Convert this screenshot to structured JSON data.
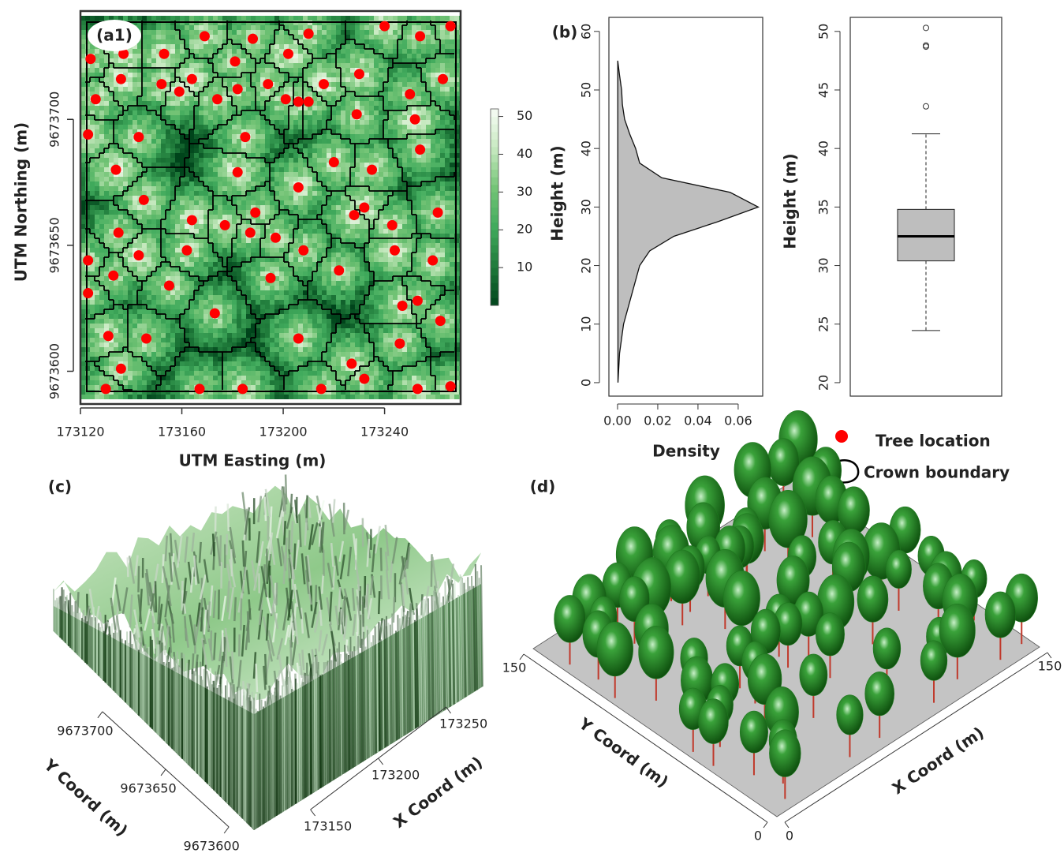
{
  "chart_data": [
    {
      "type": "map",
      "panel": "(a1)",
      "x_label": "UTM Easting (m)",
      "y_label": "UTM Northing (m)",
      "xlim": [
        173120,
        173270
      ],
      "ylim": [
        9673587,
        9673743
      ],
      "xticks": [
        173120,
        173160,
        173200,
        173240
      ],
      "yticks": [
        9673600,
        9673650,
        9673700
      ],
      "series": [
        {
          "name": "Tree location",
          "color": "#ff0000",
          "x": [
            173169,
            173188,
            173210,
            173240,
            173254,
            173266,
            173124,
            173137,
            173153,
            173181,
            173202,
            173230,
            173263,
            173136,
            173152,
            173164,
            173194,
            173216,
            173126,
            173159,
            173174,
            173182,
            173201,
            173206,
            173210,
            173250,
            173229,
            173252,
            173123,
            173143,
            173185,
            173254,
            173220,
            173134,
            173182,
            173235,
            173206,
            173145,
            173164,
            173177,
            173189,
            173232,
            173228,
            173261,
            173243,
            173135,
            173187,
            173197,
            173123,
            173143,
            173162,
            173208,
            173244,
            173259,
            173133,
            173155,
            173195,
            173222,
            173123,
            173247,
            173253,
            173173,
            173262,
            173131,
            173146,
            173206,
            173246,
            173136,
            173227,
            173232,
            173130,
            173167,
            173184,
            173215,
            173253,
            173266
          ],
          "y": [
            9673733,
            9673732,
            9673734,
            9673737,
            9673733,
            9673737,
            9673724,
            9673726,
            9673726,
            9673723,
            9673726,
            9673718,
            9673716,
            9673716,
            9673714,
            9673716,
            9673714,
            9673714,
            9673708,
            9673711,
            9673708,
            9673712,
            9673708,
            9673707,
            9673707,
            9673710,
            9673702,
            9673700,
            9673694,
            9673693,
            9673693,
            9673688,
            9673683,
            9673680,
            9673679,
            9673680,
            9673673,
            9673668,
            9673660,
            9673658,
            9673663,
            9673665,
            9673662,
            9673663,
            9673658,
            9673655,
            9673655,
            9673653,
            9673644,
            9673646,
            9673648,
            9673648,
            9673648,
            9673644,
            9673638,
            9673634,
            9673637,
            9673640,
            9673631,
            9673626,
            9673628,
            9673623,
            9673620,
            9673614,
            9673613,
            9673613,
            9673611,
            9673601,
            9673603,
            9673597,
            9673593,
            9673593,
            9673593,
            9673593,
            9673593,
            9673594
          ]
        }
      ],
      "boundary": {
        "name": "Crown boundary",
        "color": "#000000"
      },
      "colorbar": {
        "lim": [
          0,
          52
        ],
        "ticks": [
          10,
          20,
          30,
          40,
          50
        ],
        "colors": [
          "#00441b",
          "#1f7a3a",
          "#41ab5d",
          "#74c476",
          "#c7e9c0",
          "#f7fcf5"
        ]
      }
    },
    {
      "type": "density",
      "panel": "(b)",
      "x_label": "Density",
      "y_label": "Height (m)",
      "xlim": [
        -0.0043,
        0.0722
      ],
      "ylim": [
        -2.3,
        62.4
      ],
      "xticks": [
        {
          "value": 0,
          "label": "0.00"
        },
        {
          "value": 0.02,
          "label": "0.02"
        },
        {
          "value": 0.04,
          "label": "0.04"
        },
        {
          "value": 0.06,
          "label": "0.06"
        }
      ],
      "yticks": [
        0,
        10,
        20,
        30,
        40,
        50,
        60
      ],
      "series": [
        {
          "color": "#bebebe",
          "x": [
            0.0002,
            0.001,
            0.003,
            0.007,
            0.011,
            0.016,
            0.028,
            0.05,
            0.07,
            0.056,
            0.022,
            0.011,
            0.009,
            0.006,
            0.0035,
            0.0024,
            0.002,
            0.001,
            0.0001
          ],
          "y": [
            0,
            5,
            10,
            15,
            20,
            22.5,
            25,
            27.5,
            30,
            32.5,
            35,
            37.5,
            40,
            42.5,
            45,
            47.5,
            50,
            52.5,
            55
          ]
        }
      ]
    },
    {
      "type": "box",
      "y_label": "Height (m)",
      "ylim": [
        18.85,
        51.2
      ],
      "yticks": [
        20,
        25,
        30,
        35,
        40,
        45,
        50
      ],
      "color": "#bebebe",
      "whisker_low": 24.45,
      "q1": 30.4,
      "median": 32.5,
      "q3": 34.8,
      "whisker_high": 41.25,
      "outliers": [
        43.6,
        48.7,
        48.8,
        50.3
      ]
    },
    {
      "type": "surface",
      "panel": "(c)",
      "x_label": "X Coord (m)",
      "y_label": "Y Coord (m)",
      "xlim": [
        173120,
        173270
      ],
      "ylim": [
        9673587,
        9673743
      ],
      "xticks": [
        173150,
        173200,
        173250
      ],
      "yticks": [
        9673600,
        9673650,
        9673700
      ]
    },
    {
      "type": "trees3d",
      "panel": "(d)",
      "x_label": "X Coord (m)",
      "y_label": "Y Coord (m)",
      "xlim": [
        0,
        150
      ],
      "ylim": [
        0,
        150
      ],
      "xticks": [
        0,
        150
      ],
      "yticks": [
        0,
        150
      ],
      "color": "#1f7a1f",
      "trunk_color": "#c0392b"
    }
  ]
}
